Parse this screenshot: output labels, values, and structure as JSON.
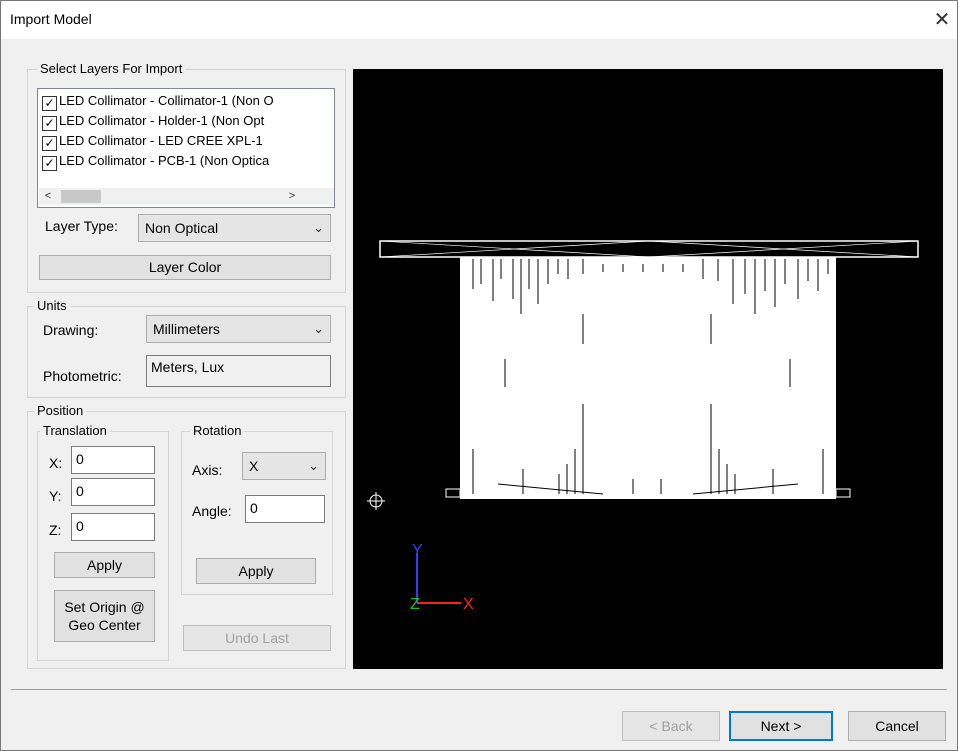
{
  "window": {
    "title": "Import Model",
    "close_glyph": "✕"
  },
  "layers": {
    "group_label": "Select Layers For Import",
    "items": [
      {
        "label": "LED Collimator - Collimator-1  (Non O",
        "checked": true
      },
      {
        "label": "LED Collimator - Holder-1  (Non Opt",
        "checked": true
      },
      {
        "label": "LED Collimator - LED CREE XPL-1",
        "checked": true
      },
      {
        "label": "LED Collimator - PCB-1  (Non Optica",
        "checked": true
      }
    ],
    "layer_type_label": "Layer Type:",
    "layer_type_value": "Non Optical",
    "layer_color_label": "Layer Color"
  },
  "units": {
    "group_label": "Units",
    "drawing_label": "Drawing:",
    "drawing_value": "Millimeters",
    "photometric_label": "Photometric:",
    "photometric_value": "Meters, Lux"
  },
  "position": {
    "group_label": "Position",
    "translation": {
      "group_label": "Translation",
      "x_label": "X:",
      "x_value": "0",
      "y_label": "Y:",
      "y_value": "0",
      "z_label": "Z:",
      "z_value": "0",
      "apply_label": "Apply",
      "set_origin_line1": "Set Origin @",
      "set_origin_line2": "Geo Center"
    },
    "rotation": {
      "group_label": "Rotation",
      "axis_label": "Axis:",
      "axis_value": "X",
      "angle_label": "Angle:",
      "angle_value": "0",
      "apply_label": "Apply"
    },
    "undo_label": "Undo Last"
  },
  "viewport": {
    "background": "#000000",
    "axis_y_label": "Y",
    "axis_x_label": "X",
    "axis_z_label": "Z",
    "axis_y_color": "#3a3aff",
    "axis_x_color": "#ff2020",
    "axis_z_color": "#20c020"
  },
  "footer": {
    "back_label": "< Back",
    "next_label": "Next >",
    "cancel_label": "Cancel"
  }
}
